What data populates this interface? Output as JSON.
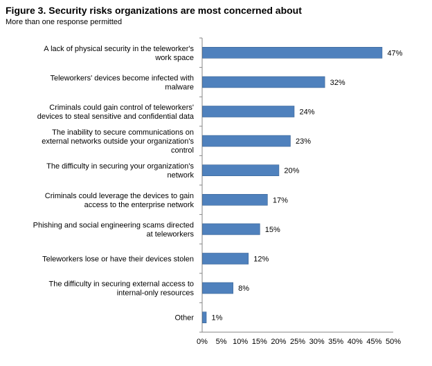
{
  "figure": {
    "title": "Figure 3. Security risks organizations are most concerned about",
    "subtitle": "More than one response permitted"
  },
  "chart_data": {
    "type": "bar",
    "orientation": "horizontal",
    "categories": [
      [
        "A lack of physical security in the teleworker's",
        "work space"
      ],
      [
        "Teleworkers' devices become infected with",
        "malware"
      ],
      [
        "Criminals could gain control of teleworkers'",
        "devices to steal sensitive and confidential data"
      ],
      [
        "The inability to secure communications on",
        "external networks outside your organization's",
        "control"
      ],
      [
        "The difficulty in securing your organization's",
        "network"
      ],
      [
        "Criminals could leverage the devices to gain",
        "access to the enterprise network"
      ],
      [
        "Phishing and social engineering scams directed",
        "at teleworkers"
      ],
      [
        "Teleworkers lose or have their devices stolen"
      ],
      [
        "The difficulty in securing external access to",
        "internal-only resources"
      ],
      [
        "Other"
      ]
    ],
    "values": [
      47,
      32,
      24,
      23,
      20,
      17,
      15,
      12,
      8,
      1
    ],
    "data_labels": [
      "47%",
      "32%",
      "24%",
      "23%",
      "20%",
      "17%",
      "15%",
      "12%",
      "8%",
      "1%"
    ],
    "xticks": [
      "0%",
      "5%",
      "10%",
      "15%",
      "20%",
      "25%",
      "30%",
      "35%",
      "40%",
      "45%",
      "50%"
    ],
    "xlim": [
      0,
      50
    ],
    "bar_color": "#4F81BD",
    "grid": false
  }
}
